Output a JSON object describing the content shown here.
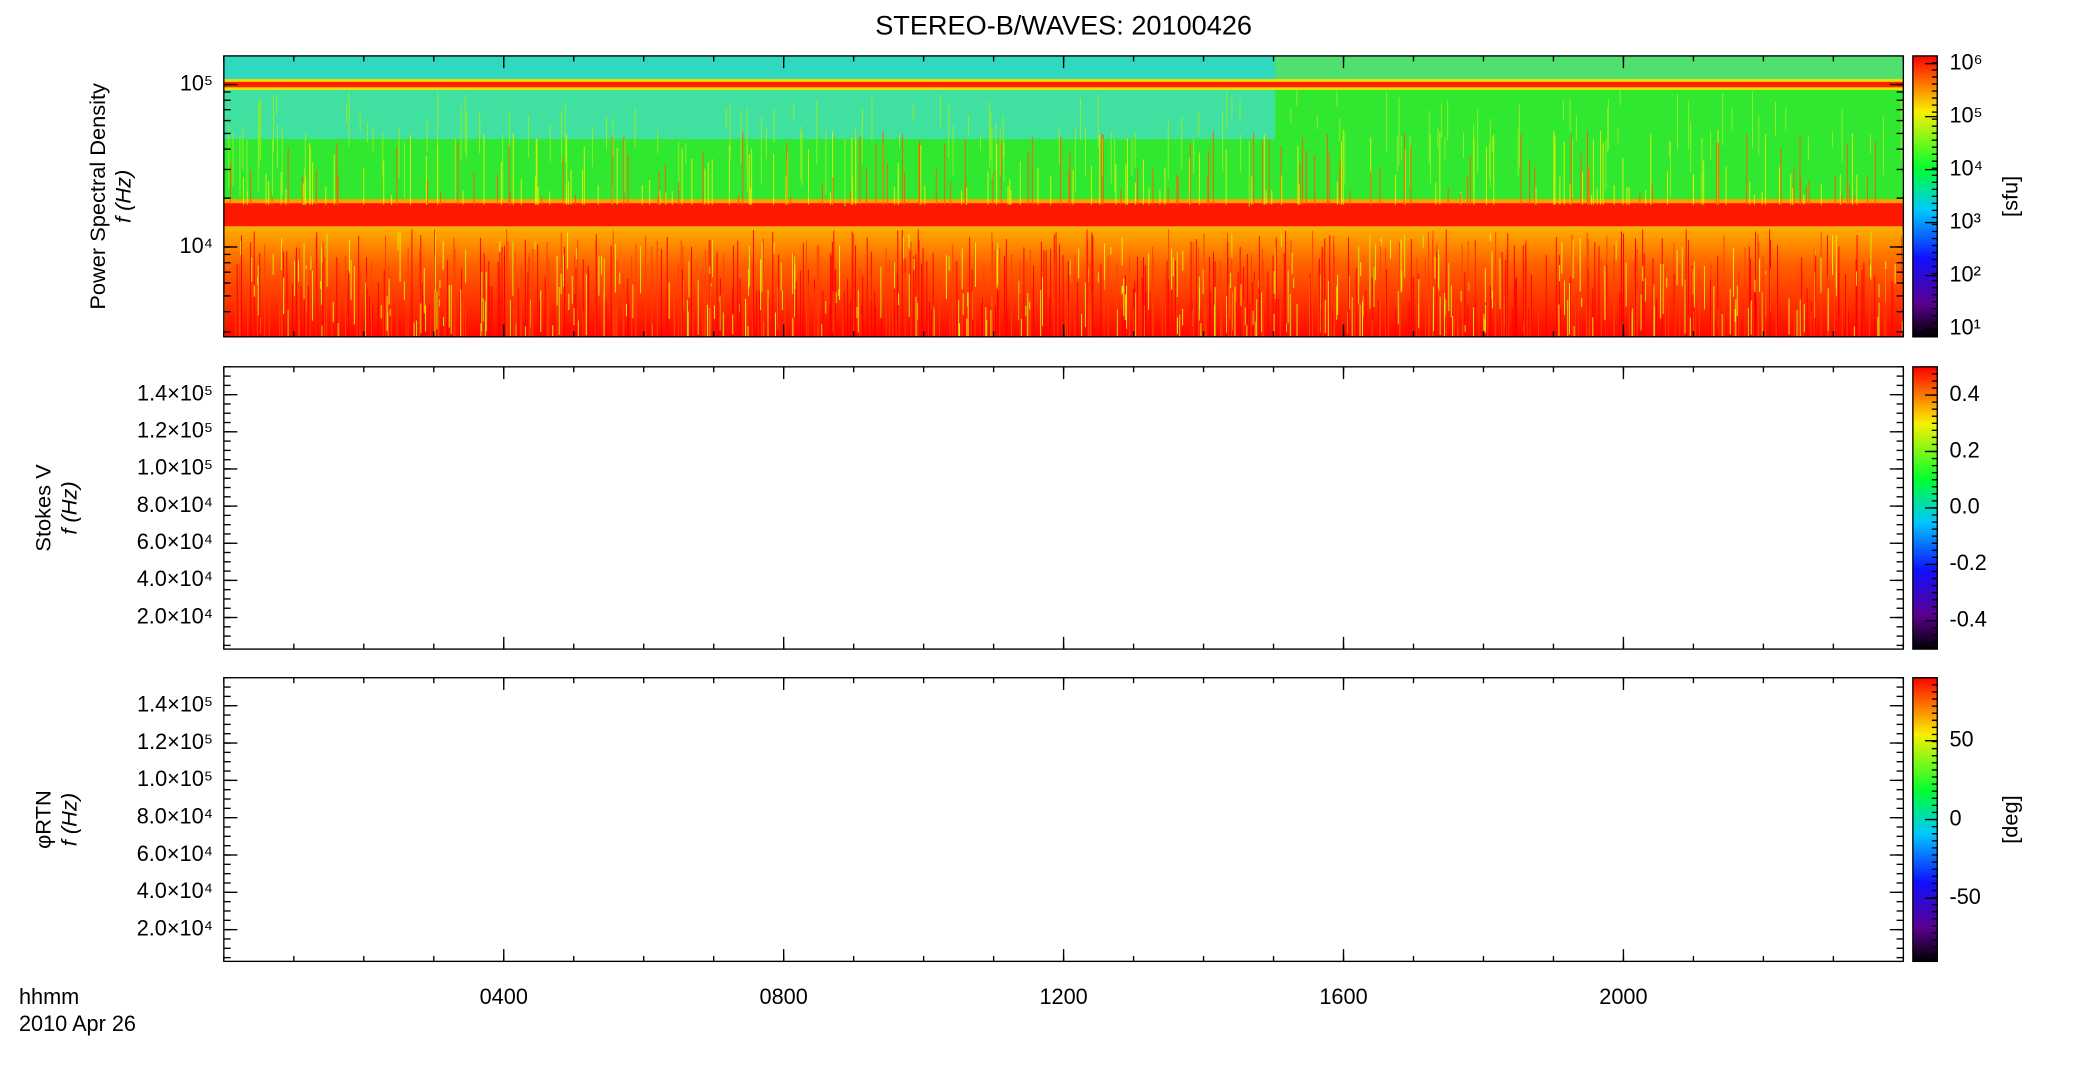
{
  "chart_data": [
    {
      "type": "heatmap",
      "title": "STEREO-B/WAVES: 20100426",
      "ylabel": "Power Spectral Density",
      "ylabel2": "f (Hz)",
      "xlim": [
        0,
        24
      ],
      "ylim": [
        2800,
        150000
      ],
      "ylog": true,
      "yticks": [
        {
          "value": 10000,
          "label": "10⁴"
        },
        {
          "value": 100000,
          "label": "10⁵"
        }
      ],
      "colorbar": {
        "label": "[sfu]",
        "lim": [
          7,
          1400000
        ],
        "log": true,
        "ticks": [
          {
            "value": 10,
            "label": "10¹"
          },
          {
            "value": 100,
            "label": "10²"
          },
          {
            "value": 1000,
            "label": "10³"
          },
          {
            "value": 10000,
            "label": "10⁴"
          },
          {
            "value": 100000,
            "label": "10⁵"
          },
          {
            "value": 1000000,
            "label": "10⁶"
          }
        ]
      }
    },
    {
      "type": "heatmap",
      "ylabel": "Stokes V",
      "ylabel2": "f (Hz)",
      "xlim": [
        0,
        24
      ],
      "ylim": [
        3000,
        155000
      ],
      "yticks": [
        {
          "value": 20000,
          "label": "2.0×10⁴"
        },
        {
          "value": 40000,
          "label": "4.0×10⁴"
        },
        {
          "value": 60000,
          "label": "6.0×10⁴"
        },
        {
          "value": 80000,
          "label": "8.0×10⁴"
        },
        {
          "value": 100000,
          "label": "1.0×10⁵"
        },
        {
          "value": 120000,
          "label": "1.2×10⁵"
        },
        {
          "value": 140000,
          "label": "1.4×10⁵"
        }
      ],
      "colorbar": {
        "lim": [
          -0.5,
          0.5
        ],
        "ticks": [
          -0.4,
          -0.2,
          {
            "value": 0,
            "label": "0.0"
          },
          0.2,
          0.4
        ]
      }
    },
    {
      "type": "heatmap",
      "ylabel": "φRTN",
      "ylabel2": "f (Hz)",
      "xlim": [
        0,
        24
      ],
      "ylim": [
        3000,
        155000
      ],
      "yticks": [
        {
          "value": 20000,
          "label": "2.0×10⁴"
        },
        {
          "value": 40000,
          "label": "4.0×10⁴"
        },
        {
          "value": 60000,
          "label": "6.0×10⁴"
        },
        {
          "value": 80000,
          "label": "8.0×10⁴"
        },
        {
          "value": 100000,
          "label": "1.0×10⁵"
        },
        {
          "value": 120000,
          "label": "1.2×10⁵"
        },
        {
          "value": 140000,
          "label": "1.4×10⁵"
        }
      ],
      "xlabel": "hhmm",
      "xsublabel": "2010 Apr 26",
      "xticks": [
        {
          "value": 4,
          "label": "0400"
        },
        {
          "value": 8,
          "label": "0800"
        },
        {
          "value": 12,
          "label": "1200"
        },
        {
          "value": 16,
          "label": "1600"
        },
        {
          "value": 20,
          "label": "2000"
        }
      ],
      "colorbar": {
        "label": "[deg]",
        "lim": [
          -90,
          90
        ],
        "ticks": [
          -50,
          0,
          50
        ]
      }
    }
  ]
}
